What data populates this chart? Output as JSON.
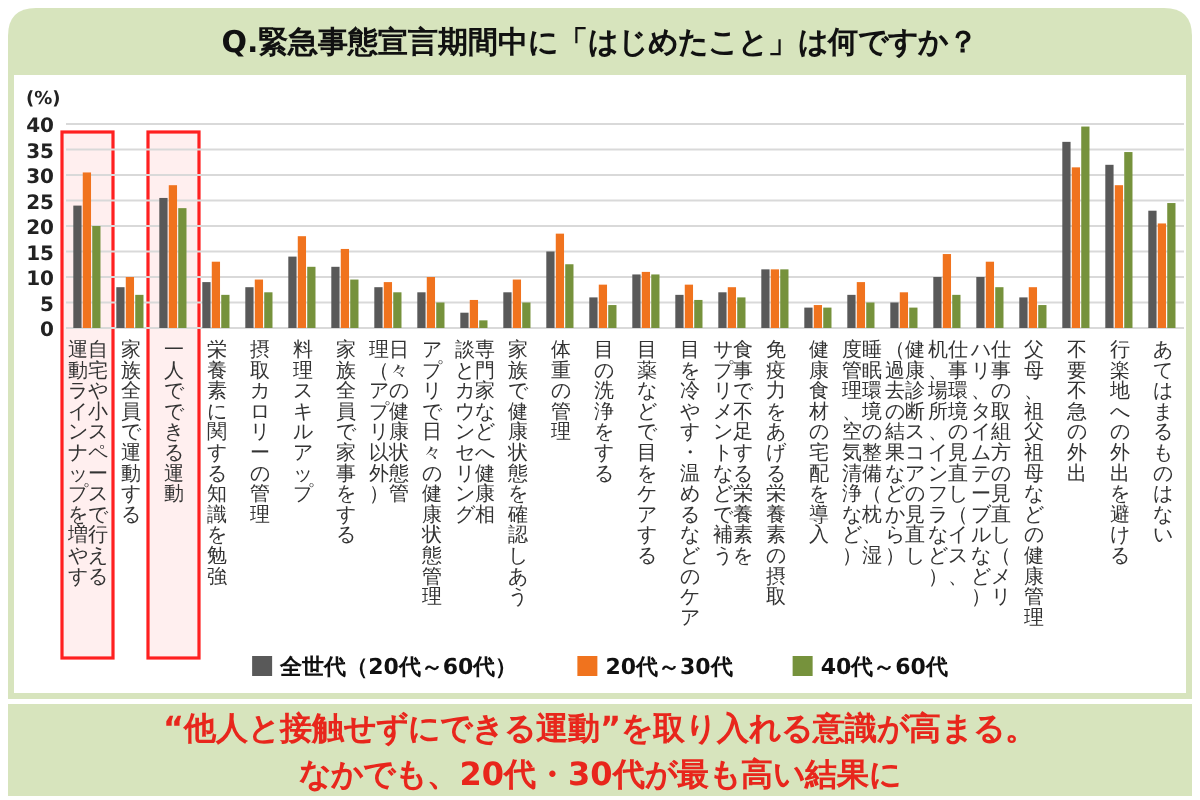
{
  "chart_data": {
    "type": "bar",
    "title": "Q.緊急事態宣言期間中に「はじめたこと」は何ですか？",
    "ylabel": "(%)",
    "categories": [
      "自宅や小スペースで行える運動ラインナップを増やす",
      "家族全員で運動する",
      "一人でできる運動",
      "栄養素に関する知識を勉強",
      "摂取カロリーの管理",
      "料理スキルアップ",
      "家族全員で家事をする",
      "日々の健康状態管理（アプリ以外）",
      "アプリで日々の健康状態管理",
      "専門家などへ健康相談とカウンセリング",
      "家族で健康状態を確認しあう",
      "体重の管理",
      "目の洗浄をする",
      "目薬などで目をケアする",
      "目を冷やす・温めるなどのケア",
      "食事で不足する栄養素をサプリメントなどで補う",
      "免疫力をあげる栄養素の摂取",
      "健康食材の宅配を導入",
      "睡眠環境の整備（枕、湿度管理、空気清浄など）",
      "健康診断スコアの見直し（過去の結果などから）",
      "仕事環境の見直し（イス、机、場所、インフラなど）",
      "仕事の取組方の見直し（メリハリ、タイムテーブルなど）",
      "父母、祖父祖母などの健康管理",
      "不要不急の外出",
      "行楽地への外出を避ける",
      "あてはまるものはない"
    ],
    "series": [
      {
        "name": "全世代（20代～60代）",
        "color": "#595959",
        "values": [
          24,
          8,
          25.5,
          9,
          8,
          14,
          12,
          8,
          7,
          3,
          7,
          15,
          6,
          10.5,
          6.5,
          7,
          11.5,
          4,
          6.5,
          5,
          10,
          10,
          6,
          36.5,
          32,
          23
        ]
      },
      {
        "name": "20代～30代",
        "color": "#f0731e",
        "values": [
          30.5,
          10,
          28,
          13,
          9.5,
          18,
          15.5,
          9,
          10,
          5.5,
          9.5,
          18.5,
          8.5,
          11,
          8.5,
          8,
          11.5,
          4.5,
          9,
          7,
          14.5,
          13,
          8,
          31.5,
          28,
          20.5
        ]
      },
      {
        "name": "40代～60代",
        "color": "#76923c",
        "values": [
          20,
          6.5,
          23.5,
          6.5,
          7,
          12,
          9.5,
          7,
          5,
          1.5,
          5,
          12.5,
          4.5,
          10.5,
          5.5,
          6,
          11.5,
          4,
          5,
          4,
          6.5,
          8,
          4.5,
          39.5,
          34.5,
          24.5
        ]
      }
    ],
    "ylim": [
      0,
      40
    ],
    "yticks": [
      0,
      5,
      10,
      15,
      20,
      25,
      30,
      35,
      40
    ],
    "grid": "y",
    "legend": "bottom",
    "bands": [
      {
        "axis": "x",
        "from": "自宅や小スペースで行える運動ラインナップを増やす",
        "to": "自宅や小スペースで行える運動ラインナップを増やす",
        "color": "#ff2020"
      },
      {
        "axis": "x",
        "from": "一人でできる運動",
        "to": "一人でできる運動",
        "color": "#ff2020"
      }
    ],
    "annotations": [
      "“他人と接触せずにできる運動”を取り入れる意識が高まる。",
      "なかでも、20代・30代が最も高い結果に"
    ]
  }
}
